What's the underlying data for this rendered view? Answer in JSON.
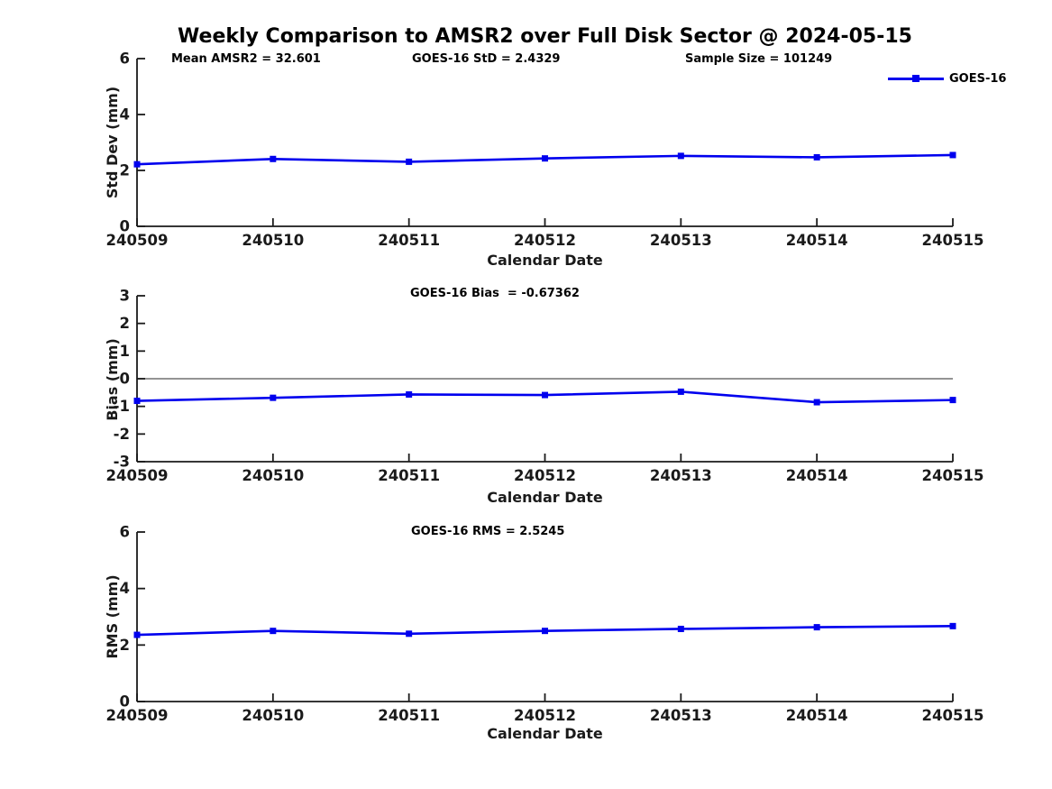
{
  "figure": {
    "title": "Weekly Comparison to AMSR2 over Full Disk Sector @ 2024-05-15",
    "legend": {
      "label": "GOES-16"
    }
  },
  "colors": {
    "line": "#0000EE",
    "axis": "#1a1a1a",
    "zero_line": "#707070",
    "text": "#000000"
  },
  "chart_data": [
    {
      "type": "line",
      "name": "std-dev-panel",
      "categories": [
        "240509",
        "240510",
        "240511",
        "240512",
        "240513",
        "240514",
        "240515"
      ],
      "series": [
        {
          "name": "GOES-16",
          "values": [
            2.22,
            2.41,
            2.31,
            2.43,
            2.52,
            2.47,
            2.55
          ]
        }
      ],
      "title": "",
      "xlabel": "Calendar Date",
      "ylabel": "Std Dev (mm)",
      "ylim": [
        0,
        6
      ],
      "yticks": [
        0,
        2,
        4,
        6
      ],
      "grid": false,
      "zero_line": false,
      "legend_position": "top-right",
      "annotations": [
        "Mean AMSR2 = 32.601",
        "GOES-16 StD = 2.4329",
        "Sample Size = 101249"
      ]
    },
    {
      "type": "line",
      "name": "bias-panel",
      "categories": [
        "240509",
        "240510",
        "240511",
        "240512",
        "240513",
        "240514",
        "240515"
      ],
      "series": [
        {
          "name": "GOES-16",
          "values": [
            -0.8,
            -0.69,
            -0.57,
            -0.59,
            -0.47,
            -0.85,
            -0.77
          ]
        }
      ],
      "title": "",
      "xlabel": "Calendar Date",
      "ylabel": "Bias (mm)",
      "ylim": [
        -3,
        3
      ],
      "yticks": [
        -3,
        -2,
        -1,
        0,
        1,
        2,
        3
      ],
      "grid": false,
      "zero_line": true,
      "legend_position": "none",
      "annotations": [
        "GOES-16 Bias  = -0.67362"
      ]
    },
    {
      "type": "line",
      "name": "rms-panel",
      "categories": [
        "240509",
        "240510",
        "240511",
        "240512",
        "240513",
        "240514",
        "240515"
      ],
      "series": [
        {
          "name": "GOES-16",
          "values": [
            2.36,
            2.5,
            2.4,
            2.5,
            2.57,
            2.63,
            2.67
          ]
        }
      ],
      "title": "",
      "xlabel": "Calendar Date",
      "ylabel": "RMS (mm)",
      "ylim": [
        0,
        6
      ],
      "yticks": [
        0,
        2,
        4,
        6
      ],
      "grid": false,
      "zero_line": false,
      "legend_position": "none",
      "annotations": [
        "GOES-16 RMS = 2.5245"
      ]
    }
  ]
}
